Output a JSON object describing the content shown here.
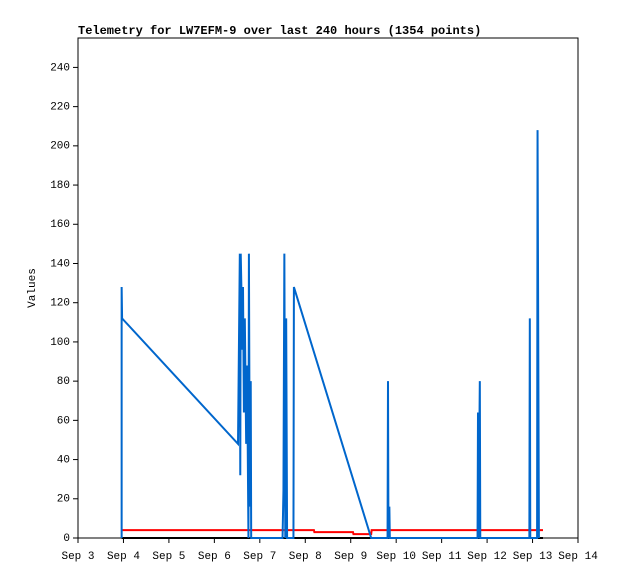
{
  "chart_data": {
    "type": "line",
    "title": "Telemetry for LW7EFM-9 over last 240 hours (1354 points)",
    "y_label": "Values",
    "xlim": [
      3,
      14
    ],
    "xticks": [
      {
        "value": 3,
        "label": "Sep 3"
      },
      {
        "value": 4,
        "label": "Sep 4"
      },
      {
        "value": 5,
        "label": "Sep 5"
      },
      {
        "value": 6,
        "label": "Sep 6"
      },
      {
        "value": 7,
        "label": "Sep 7"
      },
      {
        "value": 8,
        "label": "Sep 8"
      },
      {
        "value": 9,
        "label": "Sep 9"
      },
      {
        "value": 10,
        "label": "Sep 10"
      },
      {
        "value": 11,
        "label": "Sep 11"
      },
      {
        "value": 12,
        "label": "Sep 12"
      },
      {
        "value": 13,
        "label": "Sep 13"
      },
      {
        "value": 14,
        "label": "Sep 14"
      }
    ],
    "ylim": [
      0,
      255
    ],
    "yticks": [
      0,
      20,
      40,
      60,
      80,
      100,
      120,
      140,
      160,
      180,
      200,
      220,
      240
    ],
    "series": [
      {
        "color": "#000000",
        "x": [
          3.96,
          13.23
        ],
        "values": [
          0,
          0
        ]
      },
      {
        "color": "#ff0000",
        "x": [
          3.96,
          8.19,
          8.2,
          9.05,
          9.06,
          9.45,
          9.46,
          13.23
        ],
        "values": [
          4,
          4,
          3,
          3,
          2,
          2,
          4,
          4
        ]
      },
      {
        "color": "#0066cc",
        "x": [
          3.96,
          3.96,
          3.97,
          6.52,
          6.56,
          6.57,
          6.58,
          6.62,
          6.63,
          6.65,
          6.67,
          6.7,
          6.72,
          6.75,
          6.76,
          6.78,
          6.8,
          6.81,
          7.5,
          7.52,
          7.54,
          7.56,
          7.58,
          7.6,
          7.74,
          7.75,
          9.45,
          9.81,
          9.82,
          9.83,
          9.85,
          9.86,
          11.79,
          11.8,
          11.81,
          11.84,
          11.85,
          12.93,
          12.94,
          12.95,
          13.1,
          13.11,
          13.14
        ],
        "values": [
          0,
          128,
          112,
          48,
          145,
          32,
          145,
          96,
          128,
          64,
          112,
          48,
          88,
          0,
          145,
          16,
          80,
          0,
          0,
          24,
          145,
          0,
          112,
          0,
          0,
          128,
          0,
          0,
          80,
          0,
          16,
          0,
          0,
          64,
          0,
          80,
          0,
          0,
          112,
          0,
          0,
          208,
          0
        ]
      }
    ]
  }
}
